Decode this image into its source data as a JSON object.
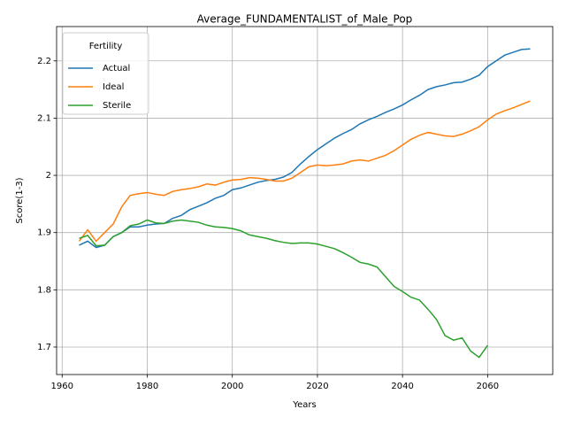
{
  "chart_data": {
    "type": "line",
    "title": "Average_FUNDAMENTALIST_of_Male_Pop",
    "x_label": "Years",
    "y_label": "Score(1-3)",
    "legend_title": "Fertility",
    "legend_position": "upper left",
    "grid": true,
    "x": [
      1964,
      1966,
      1968,
      1970,
      1972,
      1974,
      1976,
      1978,
      1980,
      1982,
      1984,
      1986,
      1988,
      1990,
      1992,
      1994,
      1996,
      1998,
      2000,
      2002,
      2004,
      2006,
      2008,
      2010,
      2012,
      2014,
      2016,
      2018,
      2020,
      2022,
      2024,
      2026,
      2028,
      2030,
      2032,
      2034,
      2036,
      2038,
      2040,
      2042,
      2044,
      2046,
      2048,
      2050,
      2052,
      2054,
      2056,
      2058,
      2060,
      2062,
      2064,
      2066,
      2068,
      2070
    ],
    "series": [
      {
        "name": "Actual",
        "color": "#1f77b4",
        "values": [
          1.878,
          1.885,
          1.874,
          1.878,
          1.893,
          1.9,
          1.91,
          1.91,
          1.913,
          1.915,
          1.916,
          1.925,
          1.93,
          1.94,
          1.946,
          1.952,
          1.96,
          1.965,
          1.975,
          1.978,
          1.983,
          1.988,
          1.991,
          1.993,
          1.997,
          2.005,
          2.02,
          2.033,
          2.045,
          2.055,
          2.065,
          2.073,
          2.08,
          2.09,
          2.097,
          2.103,
          2.11,
          2.116,
          2.123,
          2.132,
          2.14,
          2.15,
          2.155,
          2.158,
          2.162,
          2.163,
          2.168,
          2.175,
          2.19,
          2.2,
          2.21,
          2.215,
          2.22,
          2.221
        ]
      },
      {
        "name": "Ideal",
        "color": "#ff7f0e",
        "values": [
          1.885,
          1.905,
          1.885,
          1.9,
          1.915,
          1.945,
          1.965,
          1.968,
          1.97,
          1.967,
          1.965,
          1.972,
          1.975,
          1.977,
          1.98,
          1.985,
          1.983,
          1.988,
          1.992,
          1.993,
          1.996,
          1.995,
          1.993,
          1.99,
          1.99,
          1.995,
          2.005,
          2.015,
          2.018,
          2.017,
          2.018,
          2.02,
          2.025,
          2.027,
          2.025,
          2.03,
          2.035,
          2.043,
          2.053,
          2.063,
          2.07,
          2.075,
          2.072,
          2.069,
          2.068,
          2.072,
          2.078,
          2.085,
          2.097,
          2.107,
          2.113,
          2.118,
          2.124,
          2.13
        ]
      },
      {
        "name": "Sterile",
        "color": "#2ca02c",
        "values": [
          1.89,
          1.895,
          1.877,
          1.878,
          1.893,
          1.9,
          1.912,
          1.915,
          1.922,
          1.917,
          1.916,
          1.92,
          1.922,
          1.92,
          1.918,
          1.913,
          1.91,
          1.909,
          1.907,
          1.903,
          1.896,
          1.893,
          1.89,
          1.886,
          1.883,
          1.881,
          1.882,
          1.882,
          1.88,
          1.876,
          1.872,
          1.865,
          1.857,
          1.848,
          1.845,
          1.84,
          1.823,
          1.806,
          1.797,
          1.787,
          1.782,
          1.766,
          1.748,
          1.72,
          1.712,
          1.716,
          1.693,
          1.682,
          1.703,
          null,
          null,
          null,
          null,
          null
        ]
      }
    ],
    "xlim": [
      1958.7,
      2075.3
    ],
    "ylim": [
      1.652,
      2.26
    ],
    "xticks": [
      1960,
      1980,
      2000,
      2020,
      2040,
      2060
    ],
    "yticks": [
      1.7,
      1.8,
      1.9,
      2.0,
      2.1,
      2.2
    ]
  }
}
